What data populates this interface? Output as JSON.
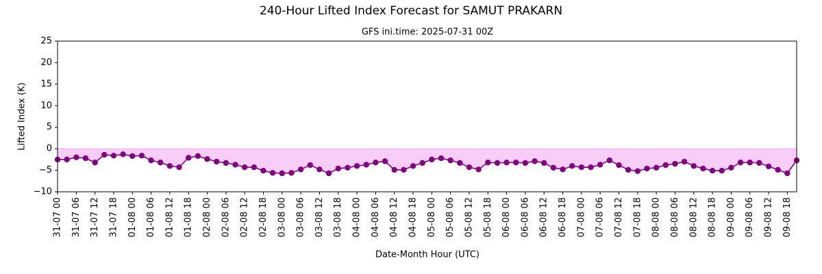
{
  "chart_data": {
    "type": "line",
    "title": "240-Hour Lifted Index Forecast for SAMUT PRAKARN",
    "subtitle": "GFS ini.time: 2025-07-31 00Z",
    "x_label": "Date-Month Hour (UTC)",
    "y_label": "Lifted Index (K)",
    "categories": [
      "31-07 00",
      null,
      "31-07 06",
      null,
      "31-07 12",
      null,
      "31-07 18",
      null,
      "01-08 00",
      null,
      "01-08 06",
      null,
      "01-08 12",
      null,
      "01-08 18",
      null,
      "02-08 00",
      null,
      "02-08 06",
      null,
      "02-08 12",
      null,
      "02-08 18",
      null,
      "03-08 00",
      null,
      "03-08 06",
      null,
      "03-08 12",
      null,
      "03-08 18",
      null,
      "04-08 00",
      null,
      "04-08 06",
      null,
      "04-08 12",
      null,
      "04-08 18",
      null,
      "05-08 00",
      null,
      "05-08 06",
      null,
      "05-08 12",
      null,
      "05-08 18",
      null,
      "06-08 00",
      null,
      "06-08 06",
      null,
      "06-08 12",
      null,
      "06-08 18",
      null,
      "07-08 00",
      null,
      "07-08 06",
      null,
      "07-08 12",
      null,
      "07-08 18",
      null,
      "08-08 00",
      null,
      "08-08 06",
      null,
      "08-08 12",
      null,
      "08-08 18",
      null,
      "09-08 00",
      null,
      "09-08 06",
      null,
      "09-08 12",
      null,
      "09-08 18",
      null
    ],
    "values": [
      -2.5,
      -2.5,
      -2.0,
      -2.2,
      -3.2,
      -1.4,
      -1.6,
      -1.3,
      -1.7,
      -1.6,
      -2.7,
      -3.2,
      -4.0,
      -4.3,
      -2.1,
      -1.7,
      -2.4,
      -3.0,
      -3.3,
      -3.7,
      -4.3,
      -4.3,
      -5.1,
      -5.6,
      -5.7,
      -5.6,
      -4.8,
      -3.8,
      -4.8,
      -5.7,
      -4.6,
      -4.4,
      -4.0,
      -3.7,
      -3.2,
      -2.9,
      -4.9,
      -4.9,
      -4.0,
      -3.3,
      -2.5,
      -2.2,
      -2.7,
      -3.3,
      -4.3,
      -4.8,
      -3.2,
      -3.3,
      -3.2,
      -3.2,
      -3.3,
      -2.9,
      -3.3,
      -4.4,
      -4.8,
      -4.0,
      -4.3,
      -4.3,
      -3.7,
      -2.7,
      -3.8,
      -4.9,
      -5.2,
      -4.6,
      -4.4,
      -3.8,
      -3.5,
      -3.0,
      -4.0,
      -4.6,
      -5.1,
      -5.1,
      -4.4,
      -3.2,
      -3.2,
      -3.3,
      -4.1,
      -4.9,
      -5.7,
      -2.7
    ],
    "color": "#800080",
    "fill_color": "#ee82ee",
    "ylim": [
      -10,
      25
    ],
    "yticks": [
      {
        "value": -10,
        "label": "−10"
      },
      {
        "value": -5,
        "label": "−5"
      },
      0,
      5,
      10,
      15,
      20,
      25
    ],
    "grid": false
  }
}
